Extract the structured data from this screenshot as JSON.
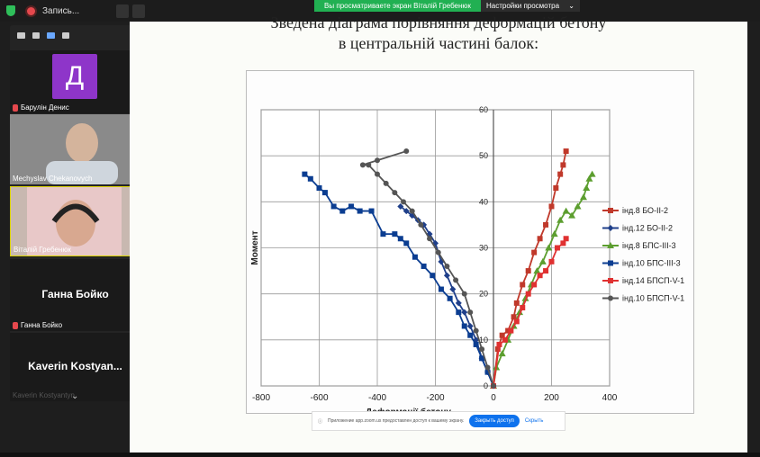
{
  "topbar": {
    "recording_label": "Запись..."
  },
  "banner": {
    "viewing": "Вы просматриваете экран Віталій Гребенюк",
    "settings": "Настройки просмотра"
  },
  "participants": [
    {
      "initial": "Д",
      "name": "Барулін Денис",
      "muted": true
    },
    {
      "name": "Mechyslav Chekanovych"
    },
    {
      "name": "Віталій Гребенюк"
    },
    {
      "display": "Ганна Бойко",
      "name": "Ганна Бойко",
      "muted": true
    },
    {
      "display": "Kaverin Kostyan...",
      "name": "Kaverin Kostyantyn"
    }
  ],
  "slide": {
    "title_line1": "Зведена діаграма порівняння деформацій бетону",
    "title_line2": "в центральній частині балок:"
  },
  "chart_data": {
    "type": "line",
    "xlabel": "Деформації бетону",
    "ylabel": "Момент",
    "xlim": [
      -800,
      400
    ],
    "ylim": [
      0,
      60
    ],
    "xticks": [
      -800,
      -600,
      -400,
      -200,
      0,
      200,
      400
    ],
    "yticks": [
      0,
      10,
      20,
      30,
      40,
      50,
      60
    ],
    "grid": true,
    "legend_position": "right",
    "series": [
      {
        "name": "інд.8 БО-ІІ-2",
        "color": "#c0392b",
        "marker": "square",
        "x": [
          0,
          15,
          30,
          50,
          70,
          80,
          100,
          120,
          140,
          160,
          180,
          200,
          215,
          230,
          240,
          250
        ],
        "y": [
          0,
          8,
          11,
          12,
          15,
          18,
          22,
          25,
          29,
          32,
          35,
          39,
          43,
          46,
          48,
          51
        ]
      },
      {
        "name": "інд.12 БО-ІІ-2",
        "color": "#1f3f8a",
        "marker": "diamond",
        "x": [
          0,
          -20,
          -40,
          -60,
          -80,
          -100,
          -120,
          -140,
          -160,
          -180,
          -200,
          -220,
          -240,
          -260,
          -280,
          -300,
          -320
        ],
        "y": [
          0,
          3,
          6,
          10,
          13,
          16,
          18,
          21,
          24,
          27,
          31,
          33,
          35,
          36,
          37,
          38,
          39
        ]
      },
      {
        "name": "інд.8 БПС-ІІІ-3",
        "color": "#5c9e2f",
        "marker": "triangle",
        "x": [
          0,
          10,
          30,
          50,
          70,
          90,
          110,
          130,
          150,
          170,
          190,
          210,
          230,
          250,
          270,
          290,
          310,
          320,
          330,
          340
        ],
        "y": [
          0,
          4,
          7,
          10,
          13,
          16,
          19,
          22,
          25,
          27,
          30,
          33,
          36,
          38,
          37,
          39,
          41,
          43,
          45,
          46
        ]
      },
      {
        "name": "інд.10 БПС-ІІІ-3",
        "color": "#0b3d91",
        "marker": "square",
        "x": [
          0,
          -20,
          -40,
          -60,
          -80,
          -100,
          -120,
          -150,
          -180,
          -210,
          -240,
          -270,
          -300,
          -320,
          -340,
          -380,
          -420,
          -460,
          -490,
          -520,
          -550,
          -580,
          -600,
          -630,
          -650
        ],
        "y": [
          0,
          3,
          6,
          9,
          11,
          13,
          16,
          19,
          21,
          24,
          26,
          28,
          31,
          32,
          33,
          33,
          38,
          38,
          39,
          38,
          39,
          42,
          43,
          45,
          46
        ]
      },
      {
        "name": "інд.14 БПСП-V-1",
        "color": "#e03131",
        "marker": "square",
        "x": [
          0,
          20,
          40,
          60,
          80,
          100,
          120,
          140,
          160,
          180,
          200,
          220,
          240,
          250
        ],
        "y": [
          0,
          9,
          10,
          12,
          14,
          17,
          20,
          22,
          24,
          25,
          27,
          30,
          31,
          32
        ]
      },
      {
        "name": "інд.10 БПСП-V-1",
        "color": "#555555",
        "marker": "circle",
        "x": [
          0,
          -20,
          -40,
          -60,
          -80,
          -100,
          -130,
          -160,
          -190,
          -220,
          -250,
          -280,
          -310,
          -340,
          -370,
          -400,
          -430,
          -450,
          -400,
          -300
        ],
        "y": [
          0,
          4,
          8,
          12,
          16,
          20,
          23,
          26,
          29,
          32,
          35,
          38,
          40,
          42,
          44,
          46,
          48,
          48,
          49,
          51
        ]
      }
    ]
  },
  "notice": {
    "text": "Приложение app.zoom.us предоставлен доступ к вашему экрану.",
    "button": "Закрыть доступ",
    "hide": "Скрыть"
  }
}
